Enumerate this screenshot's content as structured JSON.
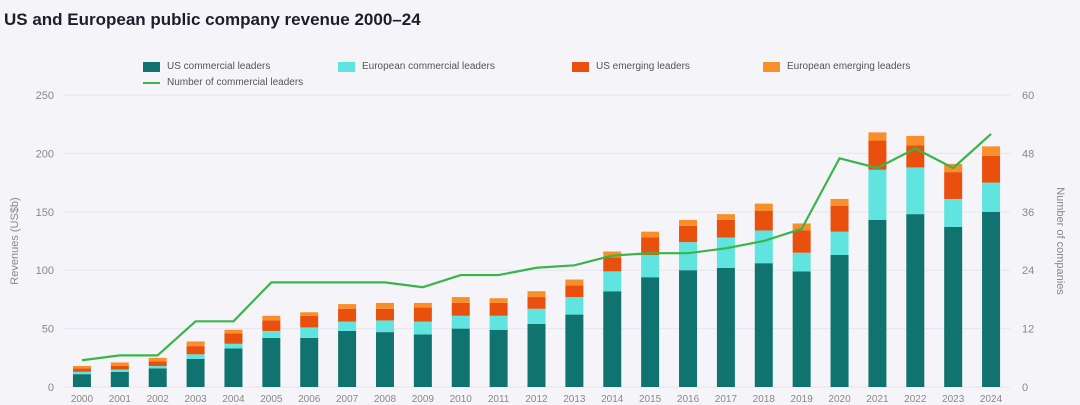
{
  "title": "US and European public company revenue 2000–24",
  "colors": {
    "us_commercial": "#10736f",
    "eu_commercial": "#5fe4df",
    "us_emerging": "#e9500e",
    "eu_emerging": "#f98f2a",
    "line": "#3ab54a",
    "grid": "#e6e5ec",
    "axis_text": "#888888"
  },
  "legend": {
    "us_commercial": "US commercial leaders",
    "eu_commercial": "European commercial leaders",
    "us_emerging": "US emerging leaders",
    "eu_emerging": "European emerging leaders",
    "line": "Number of commercial leaders"
  },
  "chart_data": {
    "type": "bar",
    "stacked": true,
    "title": "US and European public company revenue 2000–24",
    "xlabel": "",
    "ylabel": "Revenues (US$b)",
    "y2label": "Number of companies",
    "ylim": [
      0,
      250
    ],
    "y2lim": [
      0,
      60
    ],
    "yticks": [
      0,
      50,
      100,
      150,
      200,
      250
    ],
    "y2ticks": [
      0,
      12,
      24,
      36,
      48,
      60
    ],
    "grid": true,
    "legend_position": "top",
    "categories": [
      "2000",
      "2001",
      "2002",
      "2003",
      "2004",
      "2005",
      "2006",
      "2007",
      "2008",
      "2009",
      "2010",
      "2011",
      "2012",
      "2013",
      "2014",
      "2015",
      "2016",
      "2017",
      "2018",
      "2019",
      "2020",
      "2021",
      "2022",
      "2023",
      "2024"
    ],
    "series": [
      {
        "name": "US commercial leaders",
        "key": "us_commercial",
        "values": [
          11,
          13,
          16,
          24,
          33,
          42,
          42,
          48,
          47,
          45,
          50,
          49,
          54,
          62,
          82,
          94,
          100,
          102,
          106,
          99,
          113,
          143,
          148,
          137,
          150
        ]
      },
      {
        "name": "European commercial leaders",
        "key": "eu_commercial",
        "values": [
          2,
          2,
          2,
          4,
          4,
          6,
          9,
          8,
          10,
          11,
          11,
          12,
          13,
          15,
          17,
          19,
          24,
          26,
          28,
          16,
          20,
          43,
          40,
          24,
          25
        ]
      },
      {
        "name": "US emerging leaders",
        "key": "us_emerging",
        "values": [
          3,
          3,
          4,
          7,
          9,
          9,
          10,
          11,
          10,
          12,
          11,
          11,
          10,
          10,
          12,
          15,
          14,
          15,
          17,
          19,
          22,
          25,
          19,
          23,
          23
        ]
      },
      {
        "name": "European emerging leaders",
        "key": "eu_emerging",
        "values": [
          2,
          3,
          3,
          4,
          3,
          4,
          3,
          4,
          5,
          4,
          5,
          4,
          5,
          5,
          5,
          5,
          5,
          5,
          6,
          6,
          6,
          7,
          8,
          7,
          8
        ]
      }
    ],
    "line_series": {
      "name": "Number of commercial leaders",
      "axis": "right",
      "values": [
        5.5,
        6.5,
        6.5,
        13.5,
        13.5,
        21.5,
        21.5,
        21.5,
        21.5,
        20.5,
        23,
        23,
        24.5,
        25,
        27,
        27.5,
        27.5,
        28.5,
        30,
        32.5,
        47,
        45,
        49,
        45,
        52
      ]
    }
  }
}
